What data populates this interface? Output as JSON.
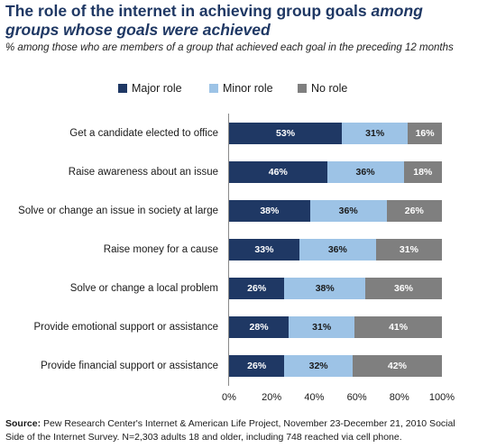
{
  "title_main": "The role of the internet in achieving group goals ",
  "title_italic": "among groups whose goals were achieved",
  "subtitle": "% among those who are members of a group that achieved each goal in the preceding 12 months",
  "source_label": "Source:",
  "source_text": "Pew Research Center's Internet & American Life Project, November 23-December 21, 2010 Social Side of the Internet Survey. N=2,303 adults 18 and older, including 748 reached via cell phone.",
  "colors": {
    "major": "#1f3864",
    "minor": "#9dc3e6",
    "none": "#7f7f7f",
    "title": "#1f3864"
  },
  "chart_data": {
    "type": "bar",
    "orientation": "horizontal",
    "stacked": true,
    "categories": [
      "Get a candidate elected to office",
      "Raise awareness about an issue",
      "Solve or change an issue in society at large",
      "Raise money for a cause",
      "Solve or change a local problem",
      "Provide emotional support or assistance",
      "Provide financial support or assistance"
    ],
    "series": [
      {
        "name": "Major role",
        "values": [
          53,
          46,
          38,
          33,
          26,
          28,
          26
        ],
        "labels": [
          "53%",
          "46%",
          "38%",
          "33%",
          "26%",
          "28%",
          "26%"
        ]
      },
      {
        "name": "Minor role",
        "values": [
          31,
          36,
          36,
          36,
          38,
          31,
          32
        ],
        "labels": [
          "31%",
          "36%",
          "36%",
          "36%",
          "38%",
          "31%",
          "32%"
        ]
      },
      {
        "name": "No role",
        "values": [
          16,
          18,
          26,
          31,
          36,
          41,
          42
        ],
        "labels": [
          "16%",
          "18%",
          "26%",
          "31%",
          "36%",
          "41%",
          "42%"
        ]
      }
    ],
    "xlim": [
      0,
      100
    ],
    "xticks": [
      "0%",
      "20%",
      "40%",
      "60%",
      "80%",
      "100%"
    ],
    "legend_position": "top",
    "grid": false
  }
}
